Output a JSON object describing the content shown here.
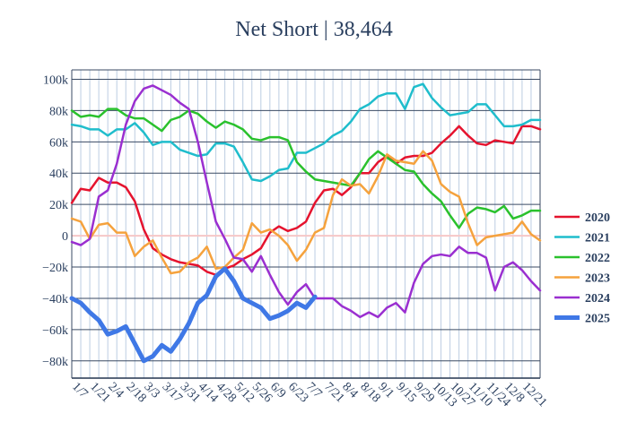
{
  "chart_data": {
    "type": "line",
    "title": "Net Short | 38,464",
    "xlabel": "",
    "ylabel": "",
    "ylim": [
      -91000,
      106000
    ],
    "yticks": [
      -80000,
      -60000,
      -40000,
      -20000,
      0,
      20000,
      40000,
      60000,
      80000,
      100000
    ],
    "ytick_labels": [
      "−80k",
      "−60k",
      "−40k",
      "−20k",
      "0",
      "20k",
      "40k",
      "60k",
      "80k",
      "100k"
    ],
    "x_count": 53,
    "xtick_labels": [
      "1/7",
      "1/21",
      "2/4",
      "2/18",
      "3/3",
      "3/17",
      "3/31",
      "4/14",
      "4/28",
      "5/12",
      "5/26",
      "6/9",
      "6/23",
      "7/7",
      "7/21",
      "8/4",
      "8/18",
      "9/1",
      "9/15",
      "9/29",
      "10/13",
      "10/27",
      "11/10",
      "11/24",
      "12/8",
      "12/21"
    ],
    "grid": true,
    "legend_position": "right",
    "series": [
      {
        "name": "2020",
        "color": "#e5132e",
        "width": 2.5,
        "values": [
          21000,
          30000,
          29000,
          37000,
          34000,
          34000,
          31000,
          22000,
          4000,
          -8000,
          -12000,
          -15000,
          -17000,
          -18000,
          -19000,
          -23000,
          -25000,
          -21000,
          -19000,
          -15000,
          -12000,
          -8000,
          2000,
          6000,
          3000,
          5000,
          9000,
          21000,
          29000,
          30000,
          26000,
          31000,
          40000,
          40000,
          47000,
          51000,
          46000,
          50000,
          51000,
          51000,
          53000,
          59000,
          64000,
          70000,
          64000,
          59000,
          58000,
          61000,
          60000,
          59000,
          70000,
          70000,
          68000
        ]
      },
      {
        "name": "2021",
        "color": "#1fbdcc",
        "width": 2.5,
        "values": [
          71000,
          70000,
          68000,
          68000,
          64000,
          68000,
          68000,
          72000,
          66000,
          58000,
          60000,
          60000,
          55000,
          53000,
          51000,
          52000,
          59000,
          59000,
          57000,
          47000,
          36000,
          35000,
          38000,
          42000,
          43000,
          53000,
          53000,
          56000,
          59000,
          64000,
          67000,
          73000,
          81000,
          84000,
          89000,
          91000,
          91000,
          81000,
          95000,
          97000,
          88000,
          82000,
          77000,
          78000,
          79000,
          84000,
          84000,
          77000,
          70000,
          70000,
          71000,
          74000,
          74000
        ]
      },
      {
        "name": "2022",
        "color": "#2ac12d",
        "width": 2.5,
        "values": [
          80000,
          76000,
          77000,
          76000,
          81000,
          81000,
          77000,
          75000,
          75000,
          71000,
          67000,
          74000,
          76000,
          80000,
          78000,
          73000,
          69000,
          73000,
          71000,
          68000,
          62000,
          61000,
          63000,
          63000,
          61000,
          47000,
          41000,
          36000,
          35000,
          34000,
          33000,
          32000,
          40000,
          49000,
          54000,
          50000,
          46000,
          42000,
          41000,
          33000,
          27000,
          22000,
          13000,
          5000,
          14000,
          18000,
          17000,
          15000,
          19000,
          11000,
          13000,
          16000,
          16000
        ]
      },
      {
        "name": "2023",
        "color": "#f5a23d",
        "width": 2.5,
        "values": [
          11000,
          9000,
          -2000,
          7000,
          8000,
          2000,
          2000,
          -13000,
          -7000,
          -3000,
          -14000,
          -24000,
          -23000,
          -17000,
          -14000,
          -7000,
          -21000,
          -20000,
          -14000,
          -9000,
          8000,
          2000,
          4000,
          0,
          -6000,
          -16000,
          -9000,
          2000,
          5000,
          26000,
          36000,
          32000,
          33000,
          27000,
          38000,
          52000,
          48000,
          47000,
          46000,
          54000,
          48000,
          33000,
          28000,
          25000,
          8000,
          -6000,
          -1000,
          0,
          1000,
          2000,
          9000,
          1000,
          -3000
        ]
      },
      {
        "name": "2024",
        "color": "#9a2fd0",
        "width": 2.5,
        "values": [
          -4000,
          -6000,
          -2000,
          25000,
          29000,
          46000,
          71000,
          86000,
          94000,
          96000,
          93000,
          90000,
          85000,
          81000,
          60000,
          34000,
          9000,
          -2000,
          -14000,
          -15000,
          -23000,
          -13000,
          -25000,
          -36000,
          -44000,
          -36000,
          -31000,
          -40000,
          -40000,
          -40000,
          -45000,
          -48000,
          -52000,
          -49000,
          -52000,
          -46000,
          -43000,
          -49000,
          -30000,
          -18000,
          -13000,
          -12000,
          -13000,
          -7000,
          -11000,
          -11000,
          -14000,
          -35000,
          -20000,
          -17000,
          -22000,
          -29000,
          -35000
        ]
      },
      {
        "name": "2025",
        "color": "#3f78e6",
        "width": 5,
        "values": [
          -40000,
          -43000,
          -49000,
          -54000,
          -63000,
          -61000,
          -58000,
          -69000,
          -80000,
          -77000,
          -70000,
          -74000,
          -66000,
          -56000,
          -43000,
          -38000,
          -26000,
          -21000,
          -29000,
          -40000,
          -43000,
          -46000,
          -53000,
          -51000,
          -48000,
          -43000,
          -46000,
          -39000
        ]
      }
    ]
  }
}
